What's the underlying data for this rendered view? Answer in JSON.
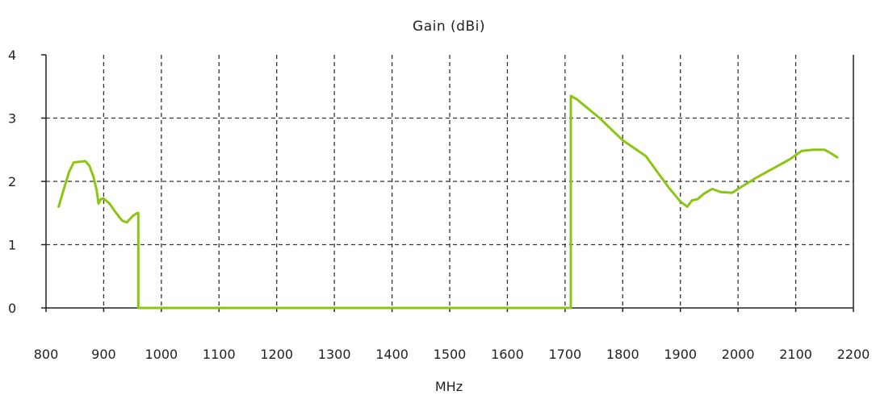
{
  "chart_data": {
    "type": "line",
    "title": "Gain (dBi)",
    "xlabel": "MHz",
    "ylabel": "",
    "xlim": [
      800,
      2200
    ],
    "ylim": [
      0,
      4
    ],
    "x_ticks": [
      "800",
      "900",
      "1000",
      "1100",
      "1200",
      "1300",
      "1400",
      "1500",
      "1600",
      "1700",
      "1800",
      "1900",
      "2000",
      "2100",
      "2200"
    ],
    "y_ticks": [
      "0",
      "1",
      "2",
      "3",
      "4"
    ],
    "grid": true,
    "line_color": "#8cc614",
    "series": [
      {
        "name": "",
        "points": [
          [
            822,
            1.6
          ],
          [
            830,
            1.85
          ],
          [
            840,
            2.15
          ],
          [
            848,
            2.3
          ],
          [
            858,
            2.31
          ],
          [
            868,
            2.32
          ],
          [
            875,
            2.25
          ],
          [
            882,
            2.08
          ],
          [
            888,
            1.85
          ],
          [
            891,
            1.65
          ],
          [
            895,
            1.72
          ],
          [
            900,
            1.73
          ],
          [
            910,
            1.65
          ],
          [
            920,
            1.52
          ],
          [
            932,
            1.38
          ],
          [
            940,
            1.35
          ],
          [
            950,
            1.45
          ],
          [
            958,
            1.5
          ],
          [
            960,
            1.5
          ],
          [
            960,
            0.0
          ],
          [
            1710,
            0.0
          ],
          [
            1710,
            3.35
          ],
          [
            1720,
            3.3
          ],
          [
            1760,
            3.0
          ],
          [
            1800,
            2.65
          ],
          [
            1840,
            2.4
          ],
          [
            1860,
            2.15
          ],
          [
            1880,
            1.9
          ],
          [
            1900,
            1.68
          ],
          [
            1912,
            1.6
          ],
          [
            1920,
            1.7
          ],
          [
            1930,
            1.72
          ],
          [
            1940,
            1.8
          ],
          [
            1955,
            1.88
          ],
          [
            1970,
            1.83
          ],
          [
            1990,
            1.82
          ],
          [
            2000,
            1.88
          ],
          [
            2030,
            2.05
          ],
          [
            2060,
            2.2
          ],
          [
            2090,
            2.35
          ],
          [
            2110,
            2.48
          ],
          [
            2130,
            2.5
          ],
          [
            2150,
            2.5
          ],
          [
            2160,
            2.45
          ],
          [
            2172,
            2.38
          ]
        ]
      }
    ]
  }
}
